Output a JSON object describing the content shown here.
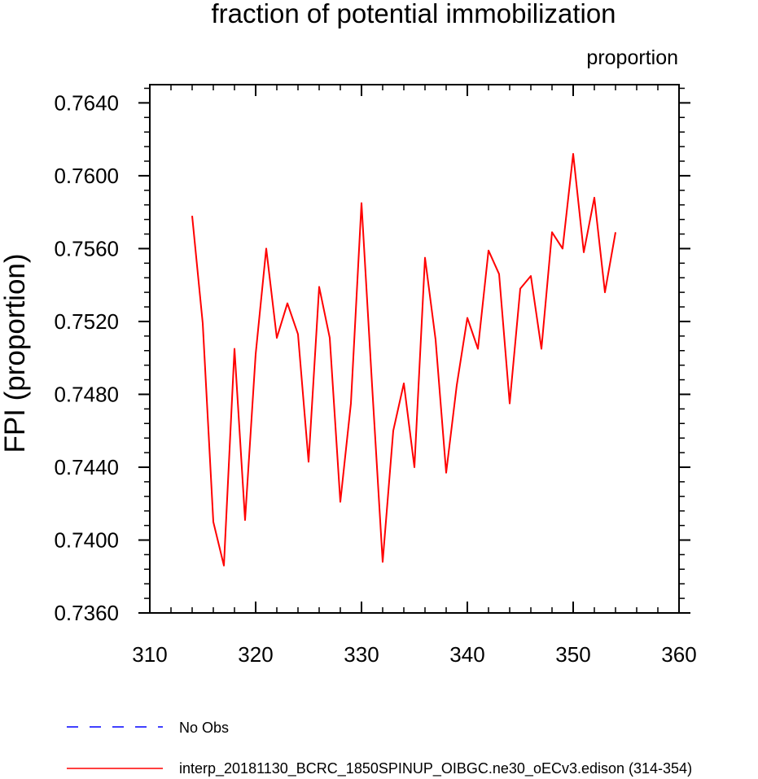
{
  "chart_data": {
    "type": "line",
    "title": "fraction of potential immobilization",
    "units_label": "proportion",
    "xlabel": "",
    "ylabel": "FPI  (proportion)",
    "xlim": [
      310,
      360
    ],
    "ylim": [
      0.736,
      0.765
    ],
    "x_ticks": [
      310,
      320,
      330,
      340,
      350,
      360
    ],
    "x_tick_labels": [
      "310",
      "320",
      "330",
      "340",
      "350",
      "360"
    ],
    "y_ticks": [
      0.736,
      0.74,
      0.744,
      0.748,
      0.752,
      0.756,
      0.76,
      0.764
    ],
    "y_tick_labels": [
      "0.7360",
      "0.7400",
      "0.7440",
      "0.7480",
      "0.7520",
      "0.7560",
      "0.7600",
      "0.7640"
    ],
    "x_minor_step": 2,
    "y_minor_step": 0.0008,
    "series": [
      {
        "name": "interp_20181130_BCRC_1850SPINUP_OIBGC.ne30_oECv3.edison (314-354)",
        "color": "#ff0000",
        "dash": "solid",
        "x": [
          314,
          315,
          316,
          317,
          318,
          319,
          320,
          321,
          322,
          323,
          324,
          325,
          326,
          327,
          328,
          329,
          330,
          331,
          332,
          333,
          334,
          335,
          336,
          337,
          338,
          339,
          340,
          341,
          342,
          343,
          344,
          345,
          346,
          347,
          348,
          349,
          350,
          351,
          352,
          353,
          354
        ],
        "values": [
          0.7578,
          0.7519,
          0.741,
          0.7386,
          0.7505,
          0.7411,
          0.7502,
          0.756,
          0.7511,
          0.753,
          0.7513,
          0.7443,
          0.7539,
          0.7511,
          0.7421,
          0.7475,
          0.7585,
          0.7485,
          0.7388,
          0.746,
          0.7486,
          0.744,
          0.7555,
          0.751,
          0.7437,
          0.7485,
          0.7522,
          0.7505,
          0.7559,
          0.7546,
          0.7475,
          0.7538,
          0.7545,
          0.7505,
          0.7569,
          0.756,
          0.7612,
          0.7558,
          0.7588,
          0.7536,
          0.7569
        ]
      }
    ],
    "legend": [
      {
        "label": "No Obs",
        "color": "#0000ff",
        "dash": "dashed"
      },
      {
        "label": "interp_20181130_BCRC_1850SPINUP_OIBGC.ne30_oECv3.edison (314-354)",
        "color": "#ff0000",
        "dash": "solid"
      }
    ]
  }
}
